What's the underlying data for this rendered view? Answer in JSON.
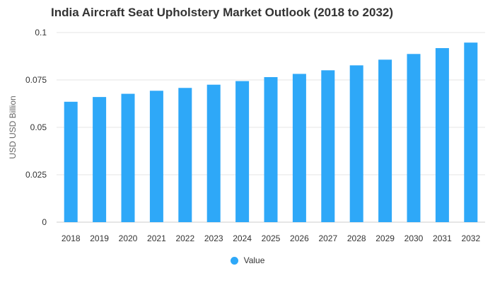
{
  "chart_data": {
    "type": "bar",
    "title": "India Aircraft Seat Upholstery Market Outlook (2018 to 2032)",
    "xlabel": "",
    "ylabel": "USD USD Billion",
    "categories": [
      "2018",
      "2019",
      "2020",
      "2021",
      "2022",
      "2023",
      "2024",
      "2025",
      "2026",
      "2027",
      "2028",
      "2029",
      "2030",
      "2031",
      "2032"
    ],
    "series": [
      {
        "name": "Value",
        "values": [
          0.0635,
          0.066,
          0.0677,
          0.0693,
          0.0708,
          0.0725,
          0.0744,
          0.0765,
          0.0782,
          0.0801,
          0.0827,
          0.0857,
          0.0887,
          0.0918,
          0.0947
        ]
      }
    ],
    "ylim": [
      0,
      0.1
    ],
    "yticks": [
      0,
      0.025,
      0.05,
      0.075,
      0.1
    ],
    "ytick_labels": [
      "0",
      "0.025",
      "0.05",
      "0.075",
      "0.1"
    ],
    "grid": true,
    "legend_position": "bottom",
    "colors": {
      "bar": "#2ea8f8",
      "grid": "#e6e6e6",
      "text": "#333333"
    }
  }
}
